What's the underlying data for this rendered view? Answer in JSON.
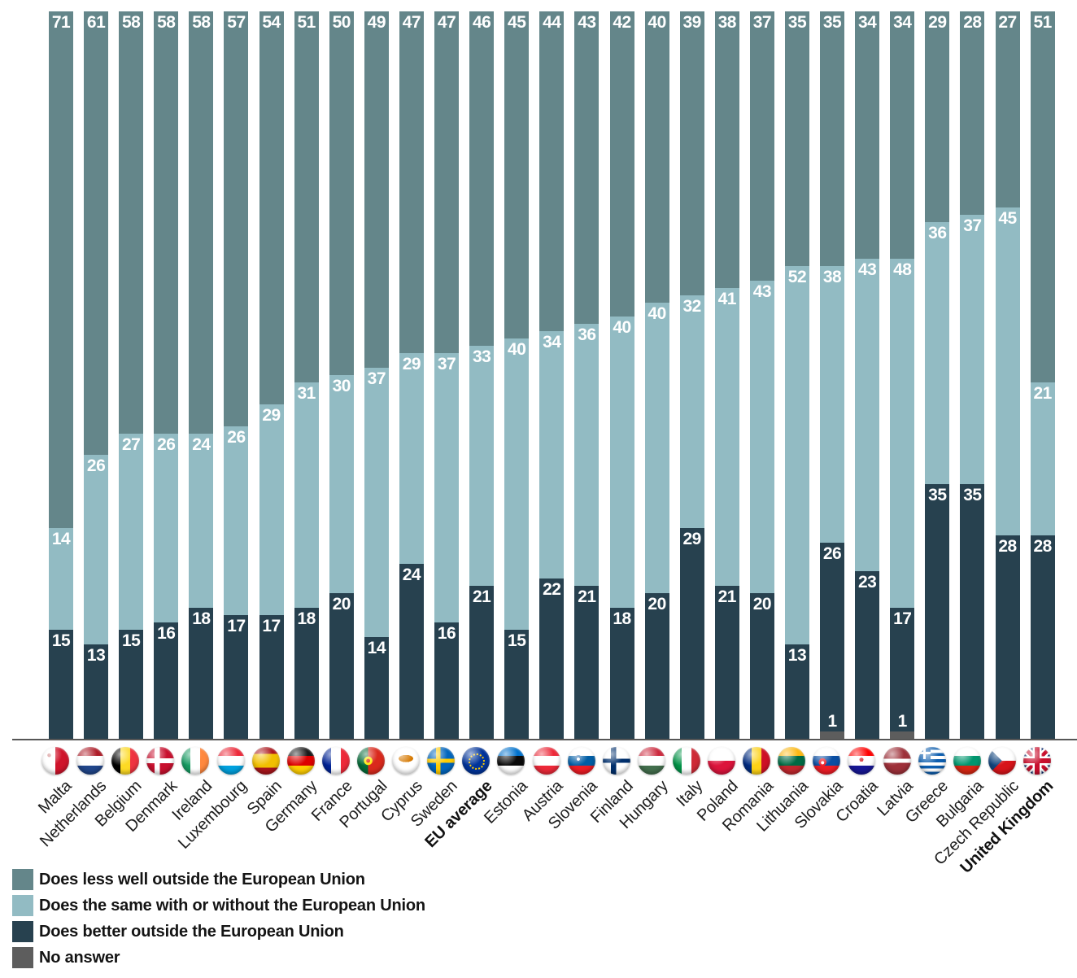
{
  "chart_data": {
    "type": "stacked-bar",
    "unit": "percent",
    "stack_total": 100,
    "orientation": "vertical",
    "value_labels_position": "inside-top-of-each-segment",
    "x_label_rotation_deg": -45,
    "legend_position": "bottom-left",
    "ylim": [
      0,
      100
    ],
    "grid": "off",
    "categories": [
      {
        "label": "Malta",
        "flag_icon": "flag-malta-icon",
        "bold": false
      },
      {
        "label": "Netherlands",
        "flag_icon": "flag-netherlands-icon",
        "bold": false
      },
      {
        "label": "Belgium",
        "flag_icon": "flag-belgium-icon",
        "bold": false
      },
      {
        "label": "Denmark",
        "flag_icon": "flag-denmark-icon",
        "bold": false
      },
      {
        "label": "Ireland",
        "flag_icon": "flag-ireland-icon",
        "bold": false
      },
      {
        "label": "Luxembourg",
        "flag_icon": "flag-luxembourg-icon",
        "bold": false
      },
      {
        "label": "Spain",
        "flag_icon": "flag-spain-icon",
        "bold": false
      },
      {
        "label": "Germany",
        "flag_icon": "flag-germany-icon",
        "bold": false
      },
      {
        "label": "France",
        "flag_icon": "flag-france-icon",
        "bold": false
      },
      {
        "label": "Portugal",
        "flag_icon": "flag-portugal-icon",
        "bold": false
      },
      {
        "label": "Cyprus",
        "flag_icon": "flag-cyprus-icon",
        "bold": false
      },
      {
        "label": "Sweden",
        "flag_icon": "flag-sweden-icon",
        "bold": false
      },
      {
        "label": "EU average",
        "flag_icon": "flag-eu-icon",
        "bold": true
      },
      {
        "label": "Estonia",
        "flag_icon": "flag-estonia-icon",
        "bold": false
      },
      {
        "label": "Austria",
        "flag_icon": "flag-austria-icon",
        "bold": false
      },
      {
        "label": "Slovenia",
        "flag_icon": "flag-slovenia-icon",
        "bold": false
      },
      {
        "label": "Finland",
        "flag_icon": "flag-finland-icon",
        "bold": false
      },
      {
        "label": "Hungary",
        "flag_icon": "flag-hungary-icon",
        "bold": false
      },
      {
        "label": "Italy",
        "flag_icon": "flag-italy-icon",
        "bold": false
      },
      {
        "label": "Poland",
        "flag_icon": "flag-poland-icon",
        "bold": false
      },
      {
        "label": "Romania",
        "flag_icon": "flag-romania-icon",
        "bold": false
      },
      {
        "label": "Lithuania",
        "flag_icon": "flag-lithuania-icon",
        "bold": false
      },
      {
        "label": "Slovakia",
        "flag_icon": "flag-slovakia-icon",
        "bold": false
      },
      {
        "label": "Croatia",
        "flag_icon": "flag-croatia-icon",
        "bold": false
      },
      {
        "label": "Latvia",
        "flag_icon": "flag-latvia-icon",
        "bold": false
      },
      {
        "label": "Greece",
        "flag_icon": "flag-greece-icon",
        "bold": false
      },
      {
        "label": "Bulgaria",
        "flag_icon": "flag-bulgaria-icon",
        "bold": false
      },
      {
        "label": "Czech Republic",
        "flag_icon": "flag-czech-republic-icon",
        "bold": false
      },
      {
        "label": "United Kingdom",
        "flag_icon": "flag-united-kingdom-icon",
        "bold": true
      }
    ],
    "series": [
      {
        "name": "Does less well outside the European Union",
        "key": "less-well",
        "color": "#64868a",
        "values": [
          71,
          61,
          58,
          58,
          58,
          57,
          54,
          51,
          50,
          49,
          47,
          47,
          46,
          45,
          44,
          43,
          42,
          40,
          39,
          38,
          37,
          35,
          35,
          34,
          34,
          29,
          28,
          27,
          51
        ]
      },
      {
        "name": "Does the same with or without the European Union",
        "key": "same",
        "color": "#92bbc3",
        "values": [
          14,
          26,
          27,
          26,
          24,
          26,
          29,
          31,
          30,
          37,
          29,
          37,
          33,
          40,
          34,
          36,
          40,
          40,
          32,
          41,
          43,
          52,
          38,
          43,
          48,
          36,
          37,
          45,
          21
        ]
      },
      {
        "name": "Does better outside the European Union",
        "key": "better",
        "color": "#27414f",
        "values": [
          15,
          13,
          15,
          16,
          18,
          17,
          17,
          18,
          20,
          14,
          24,
          16,
          21,
          15,
          22,
          21,
          18,
          20,
          29,
          21,
          20,
          13,
          26,
          23,
          17,
          35,
          35,
          28,
          28
        ]
      },
      {
        "name": "No answer",
        "key": "no-answer",
        "color": "#5d5d5d",
        "values": [
          0,
          0,
          0,
          0,
          0,
          0,
          0,
          0,
          0,
          0,
          0,
          0,
          0,
          0,
          0,
          0,
          0,
          0,
          0,
          0,
          0,
          0,
          1,
          0,
          1,
          0,
          0,
          0,
          0
        ]
      }
    ]
  },
  "legend": {
    "items": [
      {
        "label": "Does less well outside the European Union",
        "color": "#64868a"
      },
      {
        "label": "Does the same with or without the European Union",
        "color": "#92bbc3"
      },
      {
        "label": "Does better outside the European Union",
        "color": "#27414f"
      },
      {
        "label": "No answer",
        "color": "#5d5d5d"
      }
    ]
  }
}
